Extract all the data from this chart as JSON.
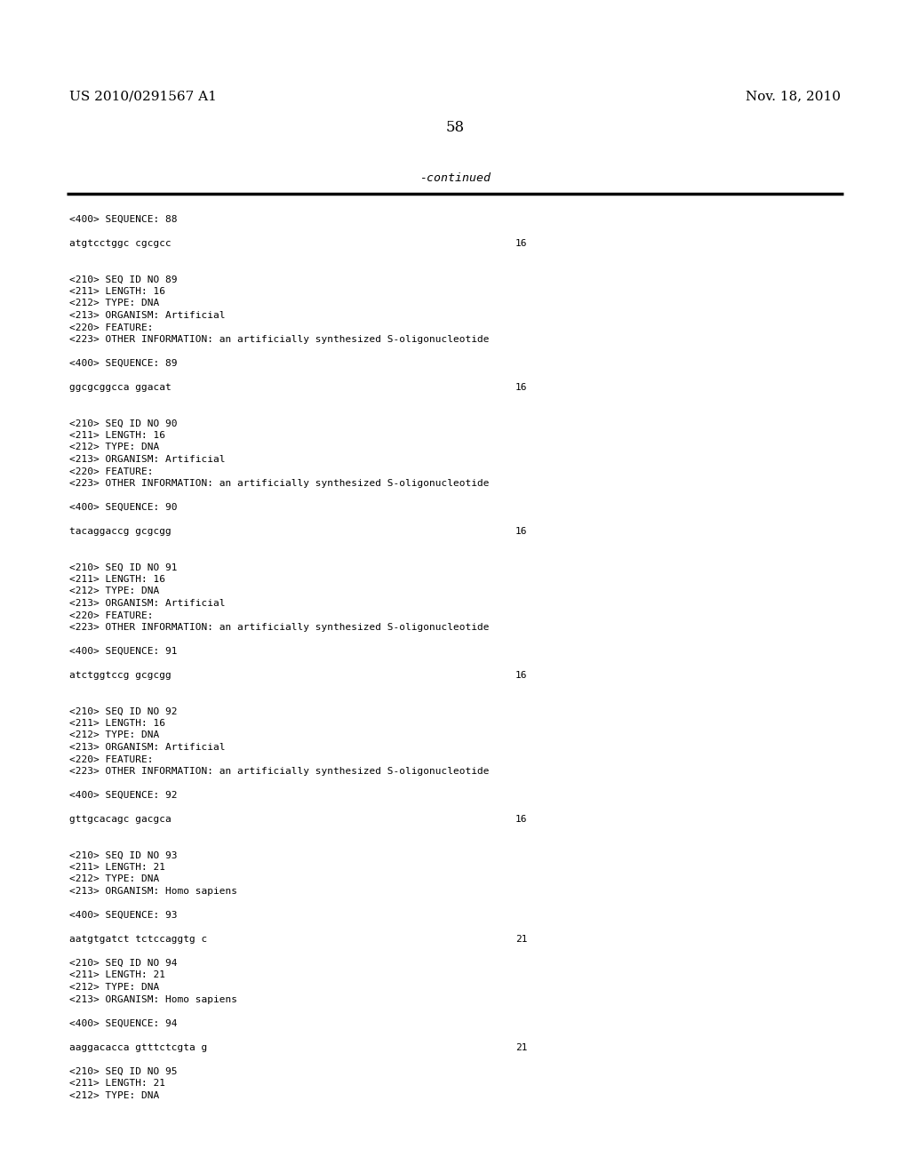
{
  "background_color": "#ffffff",
  "header_left": "US 2010/0291567 A1",
  "header_right": "Nov. 18, 2010",
  "page_number": "58",
  "continued_text": "-continued",
  "font_size_header": 11,
  "font_size_body": 8.0,
  "font_size_page": 12,
  "font_size_continued": 9.5,
  "content_lines": [
    {
      "text": "<400> SEQUENCE: 88",
      "right_num": null
    },
    {
      "text": "",
      "right_num": null
    },
    {
      "text": "atgtcctggc cgcgcc",
      "right_num": "16"
    },
    {
      "text": "",
      "right_num": null
    },
    {
      "text": "",
      "right_num": null
    },
    {
      "text": "<210> SEQ ID NO 89",
      "right_num": null
    },
    {
      "text": "<211> LENGTH: 16",
      "right_num": null
    },
    {
      "text": "<212> TYPE: DNA",
      "right_num": null
    },
    {
      "text": "<213> ORGANISM: Artificial",
      "right_num": null
    },
    {
      "text": "<220> FEATURE:",
      "right_num": null
    },
    {
      "text": "<223> OTHER INFORMATION: an artificially synthesized S-oligonucleotide",
      "right_num": null
    },
    {
      "text": "",
      "right_num": null
    },
    {
      "text": "<400> SEQUENCE: 89",
      "right_num": null
    },
    {
      "text": "",
      "right_num": null
    },
    {
      "text": "ggcgcggcca ggacat",
      "right_num": "16"
    },
    {
      "text": "",
      "right_num": null
    },
    {
      "text": "",
      "right_num": null
    },
    {
      "text": "<210> SEQ ID NO 90",
      "right_num": null
    },
    {
      "text": "<211> LENGTH: 16",
      "right_num": null
    },
    {
      "text": "<212> TYPE: DNA",
      "right_num": null
    },
    {
      "text": "<213> ORGANISM: Artificial",
      "right_num": null
    },
    {
      "text": "<220> FEATURE:",
      "right_num": null
    },
    {
      "text": "<223> OTHER INFORMATION: an artificially synthesized S-oligonucleotide",
      "right_num": null
    },
    {
      "text": "",
      "right_num": null
    },
    {
      "text": "<400> SEQUENCE: 90",
      "right_num": null
    },
    {
      "text": "",
      "right_num": null
    },
    {
      "text": "tacaggaccg gcgcgg",
      "right_num": "16"
    },
    {
      "text": "",
      "right_num": null
    },
    {
      "text": "",
      "right_num": null
    },
    {
      "text": "<210> SEQ ID NO 91",
      "right_num": null
    },
    {
      "text": "<211> LENGTH: 16",
      "right_num": null
    },
    {
      "text": "<212> TYPE: DNA",
      "right_num": null
    },
    {
      "text": "<213> ORGANISM: Artificial",
      "right_num": null
    },
    {
      "text": "<220> FEATURE:",
      "right_num": null
    },
    {
      "text": "<223> OTHER INFORMATION: an artificially synthesized S-oligonucleotide",
      "right_num": null
    },
    {
      "text": "",
      "right_num": null
    },
    {
      "text": "<400> SEQUENCE: 91",
      "right_num": null
    },
    {
      "text": "",
      "right_num": null
    },
    {
      "text": "atctggtccg gcgcgg",
      "right_num": "16"
    },
    {
      "text": "",
      "right_num": null
    },
    {
      "text": "",
      "right_num": null
    },
    {
      "text": "<210> SEQ ID NO 92",
      "right_num": null
    },
    {
      "text": "<211> LENGTH: 16",
      "right_num": null
    },
    {
      "text": "<212> TYPE: DNA",
      "right_num": null
    },
    {
      "text": "<213> ORGANISM: Artificial",
      "right_num": null
    },
    {
      "text": "<220> FEATURE:",
      "right_num": null
    },
    {
      "text": "<223> OTHER INFORMATION: an artificially synthesized S-oligonucleotide",
      "right_num": null
    },
    {
      "text": "",
      "right_num": null
    },
    {
      "text": "<400> SEQUENCE: 92",
      "right_num": null
    },
    {
      "text": "",
      "right_num": null
    },
    {
      "text": "gttgcacagc gacgca",
      "right_num": "16"
    },
    {
      "text": "",
      "right_num": null
    },
    {
      "text": "",
      "right_num": null
    },
    {
      "text": "<210> SEQ ID NO 93",
      "right_num": null
    },
    {
      "text": "<211> LENGTH: 21",
      "right_num": null
    },
    {
      "text": "<212> TYPE: DNA",
      "right_num": null
    },
    {
      "text": "<213> ORGANISM: Homo sapiens",
      "right_num": null
    },
    {
      "text": "",
      "right_num": null
    },
    {
      "text": "<400> SEQUENCE: 93",
      "right_num": null
    },
    {
      "text": "",
      "right_num": null
    },
    {
      "text": "aatgtgatct tctccaggtg c",
      "right_num": "21"
    },
    {
      "text": "",
      "right_num": null
    },
    {
      "text": "<210> SEQ ID NO 94",
      "right_num": null
    },
    {
      "text": "<211> LENGTH: 21",
      "right_num": null
    },
    {
      "text": "<212> TYPE: DNA",
      "right_num": null
    },
    {
      "text": "<213> ORGANISM: Homo sapiens",
      "right_num": null
    },
    {
      "text": "",
      "right_num": null
    },
    {
      "text": "<400> SEQUENCE: 94",
      "right_num": null
    },
    {
      "text": "",
      "right_num": null
    },
    {
      "text": "aaggacacca gtttctcgta g",
      "right_num": "21"
    },
    {
      "text": "",
      "right_num": null
    },
    {
      "text": "<210> SEQ ID NO 95",
      "right_num": null
    },
    {
      "text": "<211> LENGTH: 21",
      "right_num": null
    },
    {
      "text": "<212> TYPE: DNA",
      "right_num": null
    }
  ]
}
